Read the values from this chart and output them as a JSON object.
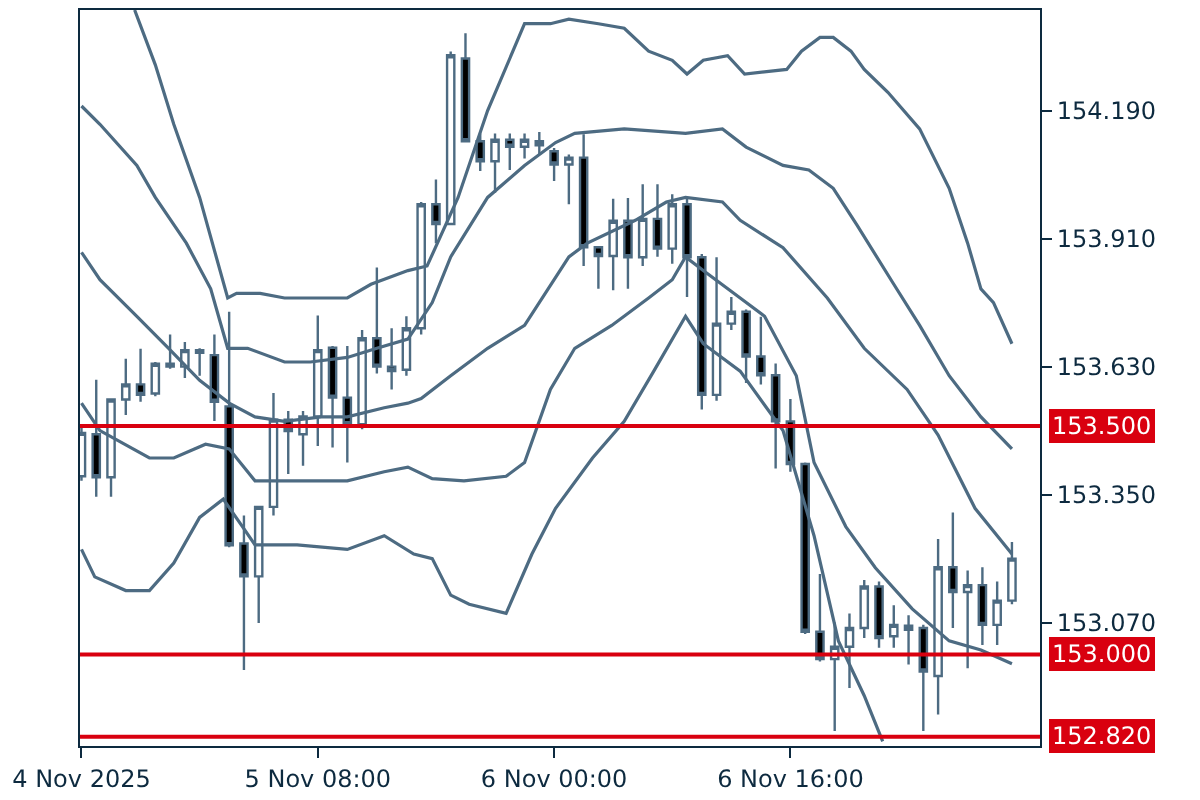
{
  "chart_data": {
    "type": "candlestick",
    "x": [
      "2025-11-04T16:00",
      "2025-11-04T17:00",
      "2025-11-04T18:00",
      "2025-11-04T19:00",
      "2025-11-04T20:00",
      "2025-11-04T21:00",
      "2025-11-04T22:00",
      "2025-11-04T23:00",
      "2025-11-05T00:00",
      "2025-11-05T01:00",
      "2025-11-05T02:00",
      "2025-11-05T03:00",
      "2025-11-05T04:00",
      "2025-11-05T05:00",
      "2025-11-05T06:00",
      "2025-11-05T07:00",
      "2025-11-05T08:00",
      "2025-11-05T09:00",
      "2025-11-05T10:00",
      "2025-11-05T11:00",
      "2025-11-05T12:00",
      "2025-11-05T13:00",
      "2025-11-05T14:00",
      "2025-11-05T15:00",
      "2025-11-05T16:00",
      "2025-11-05T17:00",
      "2025-11-05T18:00",
      "2025-11-05T19:00",
      "2025-11-05T20:00",
      "2025-11-05T21:00",
      "2025-11-05T22:00",
      "2025-11-05T23:00",
      "2025-11-06T00:00",
      "2025-11-06T01:00",
      "2025-11-06T02:00",
      "2025-11-06T03:00",
      "2025-11-06T04:00",
      "2025-11-06T05:00",
      "2025-11-06T06:00",
      "2025-11-06T07:00",
      "2025-11-06T08:00",
      "2025-11-06T09:00",
      "2025-11-06T10:00",
      "2025-11-06T11:00",
      "2025-11-06T12:00",
      "2025-11-06T13:00",
      "2025-11-06T14:00",
      "2025-11-06T15:00",
      "2025-11-06T16:00",
      "2025-11-06T17:00",
      "2025-11-06T18:00",
      "2025-11-06T19:00",
      "2025-11-06T20:00",
      "2025-11-06T21:00",
      "2025-11-06T22:00",
      "2025-11-06T23:00",
      "2025-11-07T00:00",
      "2025-11-07T01:00",
      "2025-11-07T02:00",
      "2025-11-07T03:00",
      "2025-11-07T04:00",
      "2025-11-07T05:00",
      "2025-11-07T06:00",
      "2025-11-07T07:00"
    ],
    "ohlc": [
      [
        153.39,
        153.5,
        153.38,
        153.485
      ],
      [
        153.482,
        153.601,
        153.345,
        153.388
      ],
      [
        153.388,
        153.56,
        153.345,
        153.558
      ],
      [
        153.558,
        153.647,
        153.524,
        153.591
      ],
      [
        153.591,
        153.669,
        153.553,
        153.568
      ],
      [
        153.571,
        153.64,
        153.565,
        153.636
      ],
      [
        153.63,
        153.7,
        153.625,
        153.636
      ],
      [
        153.63,
        153.684,
        153.605,
        153.666
      ],
      [
        153.666,
        153.67,
        153.61,
        153.66
      ],
      [
        153.655,
        153.7,
        153.511,
        153.553
      ],
      [
        153.543,
        153.75,
        153.235,
        153.239
      ],
      [
        153.243,
        153.304,
        152.966,
        153.171
      ],
      [
        153.171,
        153.325,
        153.069,
        153.323
      ],
      [
        153.323,
        153.572,
        153.304,
        153.514
      ],
      [
        153.514,
        153.533,
        153.395,
        153.489
      ],
      [
        153.482,
        153.533,
        153.413,
        153.521
      ],
      [
        153.521,
        153.742,
        153.456,
        153.666
      ],
      [
        153.671,
        153.675,
        153.453,
        153.562
      ],
      [
        153.562,
        153.675,
        153.42,
        153.504
      ],
      [
        153.504,
        153.71,
        153.493,
        153.692
      ],
      [
        153.692,
        153.847,
        153.615,
        153.63
      ],
      [
        153.63,
        153.714,
        153.58,
        153.62
      ],
      [
        153.623,
        153.74,
        153.61,
        153.714
      ],
      [
        153.714,
        153.99,
        153.7,
        153.985
      ],
      [
        153.985,
        154.039,
        153.9,
        153.942
      ],
      [
        153.942,
        154.319,
        153.94,
        154.311
      ],
      [
        154.304,
        154.359,
        154.12,
        154.123
      ],
      [
        154.123,
        154.14,
        154.058,
        154.079
      ],
      [
        154.079,
        154.14,
        154.01,
        154.126
      ],
      [
        154.126,
        154.14,
        154.06,
        154.111
      ],
      [
        154.111,
        154.14,
        154.085,
        154.126
      ],
      [
        154.123,
        154.143,
        154.094,
        154.114
      ],
      [
        154.101,
        154.108,
        154.036,
        154.072
      ],
      [
        154.072,
        154.094,
        153.985,
        154.087
      ],
      [
        154.087,
        154.138,
        153.85,
        153.891
      ],
      [
        153.891,
        153.891,
        153.8,
        153.872
      ],
      [
        153.872,
        153.997,
        153.797,
        153.949
      ],
      [
        153.949,
        153.999,
        153.8,
        153.869
      ],
      [
        153.869,
        154.029,
        153.85,
        153.953
      ],
      [
        153.953,
        154.029,
        153.87,
        153.888
      ],
      [
        153.888,
        154.007,
        153.855,
        153.985
      ],
      [
        153.985,
        153.999,
        153.782,
        153.869
      ],
      [
        153.869,
        153.876,
        153.536,
        153.568
      ],
      [
        153.568,
        153.869,
        153.555,
        153.724
      ],
      [
        153.724,
        153.782,
        153.71,
        153.75
      ],
      [
        153.75,
        153.755,
        153.594,
        153.652
      ],
      [
        153.652,
        153.739,
        153.591,
        153.611
      ],
      [
        153.611,
        153.637,
        153.407,
        153.51
      ],
      [
        153.51,
        153.559,
        153.4,
        153.417
      ],
      [
        153.417,
        153.42,
        153.045,
        153.05
      ],
      [
        153.05,
        153.176,
        152.985,
        152.99
      ],
      [
        152.99,
        153.07,
        152.833,
        153.017
      ],
      [
        153.017,
        153.09,
        152.927,
        153.058
      ],
      [
        153.058,
        153.163,
        153.036,
        153.149
      ],
      [
        153.149,
        153.16,
        153.015,
        153.036
      ],
      [
        153.04,
        153.108,
        153.015,
        153.065
      ],
      [
        153.054,
        153.086,
        152.978,
        153.063
      ],
      [
        153.058,
        153.065,
        152.833,
        152.963
      ],
      [
        152.953,
        153.253,
        152.869,
        153.191
      ],
      [
        153.191,
        153.311,
        153.058,
        153.137
      ],
      [
        153.137,
        153.184,
        152.97,
        153.152
      ],
      [
        153.152,
        153.191,
        153.021,
        153.065
      ],
      [
        153.065,
        153.16,
        153.021,
        153.118
      ],
      [
        153.118,
        153.246,
        153.11,
        153.21
      ]
    ],
    "series": [
      {
        "type": "line",
        "color": "#4d6b82",
        "x": [
          "2025-11-04T19:36",
          "2025-11-04T21:00",
          "2025-11-04T22:15",
          "2025-11-05T00:00",
          "2025-11-05T01:54",
          "2025-11-05T02:30",
          "2025-11-05T04:06",
          "2025-11-05T05:45",
          "2025-11-05T07:30",
          "2025-11-05T10:00",
          "2025-11-05T11:36",
          "2025-11-05T14:06",
          "2025-11-05T15:24",
          "2025-11-05T17:30",
          "2025-11-05T19:30",
          "2025-11-05T22:00",
          "2025-11-05T23:45",
          "2025-11-06T01:00",
          "2025-11-06T03:00",
          "2025-11-06T04:45",
          "2025-11-06T06:24",
          "2025-11-06T08:00",
          "2025-11-06T09:00",
          "2025-11-06T10:06",
          "2025-11-06T11:45",
          "2025-11-06T12:54",
          "2025-11-06T15:45",
          "2025-11-06T16:45",
          "2025-11-06T18:00",
          "2025-11-06T18:54",
          "2025-11-06T20:06",
          "2025-11-06T21:00",
          "2025-11-06T22:36",
          "2025-11-07T00:45",
          "2025-11-07T02:45",
          "2025-11-07T04:00",
          "2025-11-07T04:54",
          "2025-11-07T05:45",
          "2025-11-07T07:00"
        ],
        "values": [
          154.41,
          154.29,
          154.16,
          154,
          153.78,
          153.79,
          153.79,
          153.78,
          153.78,
          153.78,
          153.81,
          153.84,
          153.85,
          154,
          154.19,
          154.38,
          154.38,
          154.39,
          154.38,
          154.37,
          154.32,
          154.3,
          154.27,
          154.3,
          154.31,
          154.27,
          154.28,
          154.32,
          154.35,
          154.35,
          154.32,
          154.28,
          154.23,
          154.15,
          154.02,
          153.9,
          153.8,
          153.77,
          153.68
        ]
      },
      {
        "type": "line",
        "color": "#4d6b82",
        "x": [
          "2025-11-04T16:00",
          "2025-11-04T17:15",
          "2025-11-04T19:45",
          "2025-11-04T21:00",
          "2025-11-04T23:06",
          "2025-11-05T00:45",
          "2025-11-05T01:54",
          "2025-11-05T03:15",
          "2025-11-05T05:45",
          "2025-11-05T07:30",
          "2025-11-05T10:00",
          "2025-11-05T12:00",
          "2025-11-05T14:06",
          "2025-11-05T15:45",
          "2025-11-05T17:00",
          "2025-11-05T19:30",
          "2025-11-05T22:00",
          "2025-11-06T00:06",
          "2025-11-06T01:24",
          "2025-11-06T04:45",
          "2025-11-06T08:54",
          "2025-11-06T11:24",
          "2025-11-06T13:00",
          "2025-11-06T15:30",
          "2025-11-06T17:15",
          "2025-11-06T18:54",
          "2025-11-06T20:30",
          "2025-11-06T23:00",
          "2025-11-07T00:45",
          "2025-11-07T02:45",
          "2025-11-07T04:54",
          "2025-11-07T07:00"
        ],
        "values": [
          154.2,
          154.16,
          154.07,
          154,
          153.9,
          153.8,
          153.67,
          153.67,
          153.64,
          153.64,
          153.65,
          153.67,
          153.69,
          153.77,
          153.87,
          154,
          154.07,
          154.12,
          154.14,
          154.15,
          154.14,
          154.15,
          154.11,
          154.07,
          154.06,
          154.02,
          153.94,
          153.81,
          153.72,
          153.61,
          153.52,
          153.45
        ]
      },
      {
        "type": "line",
        "color": "#4d6b82",
        "x": [
          "2025-11-04T16:00",
          "2025-11-04T17:15",
          "2025-11-04T19:45",
          "2025-11-04T21:54",
          "2025-11-05T00:00",
          "2025-11-05T02:00",
          "2025-11-05T03:45",
          "2025-11-05T05:45",
          "2025-11-05T08:15",
          "2025-11-05T10:00",
          "2025-11-05T12:30",
          "2025-11-05T14:06",
          "2025-11-05T15:00",
          "2025-11-05T17:00",
          "2025-11-05T19:30",
          "2025-11-05T22:00",
          "2025-11-06T01:00",
          "2025-11-06T02:15",
          "2025-11-06T05:30",
          "2025-11-06T07:36",
          "2025-11-06T08:54",
          "2025-11-06T11:24",
          "2025-11-06T12:36",
          "2025-11-06T15:30",
          "2025-11-06T18:30",
          "2025-11-06T21:00",
          "2025-11-06T23:54",
          "2025-11-07T02:00",
          "2025-11-07T04:30",
          "2025-11-07T07:00"
        ],
        "values": [
          153.88,
          153.82,
          153.74,
          153.67,
          153.6,
          153.55,
          153.52,
          153.51,
          153.52,
          153.52,
          153.54,
          153.55,
          153.56,
          153.61,
          153.67,
          153.72,
          153.87,
          153.9,
          153.95,
          153.99,
          154,
          153.99,
          153.95,
          153.89,
          153.78,
          153.67,
          153.58,
          153.48,
          153.32,
          153.22
        ]
      },
      {
        "type": "line",
        "color": "#4d6b82",
        "x": [
          "2025-11-04T16:00",
          "2025-11-04T17:15",
          "2025-11-04T20:36",
          "2025-11-04T22:15",
          "2025-11-05T00:24",
          "2025-11-05T02:00",
          "2025-11-05T03:45",
          "2025-11-05T05:45",
          "2025-11-05T08:15",
          "2025-11-05T10:00",
          "2025-11-05T12:30",
          "2025-11-05T14:06",
          "2025-11-05T15:45",
          "2025-11-05T17:54",
          "2025-11-05T20:45",
          "2025-11-05T22:00",
          "2025-11-05T23:45",
          "2025-11-06T01:24",
          "2025-11-06T03:54",
          "2025-11-06T06:24",
          "2025-11-06T08:00",
          "2025-11-06T08:54",
          "2025-11-06T10:06",
          "2025-11-06T12:36",
          "2025-11-06T14:15",
          "2025-11-06T16:24",
          "2025-11-06T17:36",
          "2025-11-06T19:45",
          "2025-11-06T21:45",
          "2025-11-07T00:15",
          "2025-11-07T02:45",
          "2025-11-07T04:54",
          "2025-11-07T07:00"
        ],
        "values": [
          153.55,
          153.49,
          153.43,
          153.43,
          153.46,
          153.45,
          153.38,
          153.38,
          153.38,
          153.38,
          153.4,
          153.41,
          153.385,
          153.38,
          153.39,
          153.42,
          153.58,
          153.67,
          153.72,
          153.78,
          153.82,
          153.87,
          153.84,
          153.78,
          153.74,
          153.61,
          153.42,
          153.28,
          153.19,
          153.1,
          153.03,
          153.01,
          152.98
        ]
      },
      {
        "type": "line",
        "color": "#4d6b82",
        "x": [
          "2025-11-04T16:00",
          "2025-11-04T16:54",
          "2025-11-04T19:00",
          "2025-11-04T20:36",
          "2025-11-04T22:15",
          "2025-11-05T00:00",
          "2025-11-05T01:36",
          "2025-11-05T02:54",
          "2025-11-05T03:45",
          "2025-11-05T06:36",
          "2025-11-05T10:00",
          "2025-11-05T12:30",
          "2025-11-05T14:30",
          "2025-11-05T15:45",
          "2025-11-05T17:00",
          "2025-11-05T18:15",
          "2025-11-05T20:45",
          "2025-11-05T22:30",
          "2025-11-06T00:06",
          "2025-11-06T02:36",
          "2025-11-06T04:45",
          "2025-11-06T06:45",
          "2025-11-06T08:54",
          "2025-11-06T10:06",
          "2025-11-06T12:36",
          "2025-11-06T15:30",
          "2025-11-06T17:36",
          "2025-11-06T19:15",
          "2025-11-06T21:00",
          "2025-11-06T22:15"
        ],
        "values": [
          153.23,
          153.17,
          153.14,
          153.14,
          153.2,
          153.3,
          153.34,
          153.28,
          153.24,
          153.24,
          153.23,
          153.26,
          153.22,
          153.21,
          153.13,
          153.11,
          153.09,
          153.22,
          153.32,
          153.43,
          153.51,
          153.62,
          153.74,
          153.68,
          153.62,
          153.49,
          153.26,
          153.03,
          152.91,
          152.81
        ]
      }
    ],
    "xlim": [
      "2025-11-04T15:54",
      "2025-11-07T08:54"
    ],
    "xticks": [
      {
        "value": "2025-11-04T16:00",
        "label": "4 Nov 2025"
      },
      {
        "value": "2025-11-05T08:00",
        "label": "5 Nov 08:00"
      },
      {
        "value": "2025-11-06T00:00",
        "label": "6 Nov 00:00"
      },
      {
        "value": "2025-11-06T16:00",
        "label": "6 Nov 16:00"
      }
    ],
    "ylim": [
      152.8,
      154.41
    ],
    "yticks": [
      {
        "value": 154.19,
        "label": "154.190"
      },
      {
        "value": 153.91,
        "label": "153.910"
      },
      {
        "value": 153.63,
        "label": "153.630"
      },
      {
        "value": 153.35,
        "label": "153.350"
      },
      {
        "value": 153.07,
        "label": "153.070"
      }
    ],
    "ref_lines": [
      {
        "axis": "y",
        "value": 153.5,
        "label": "153.500",
        "color": "#d9000f"
      },
      {
        "axis": "y",
        "value": 153.0,
        "label": "153.000",
        "color": "#d9000f"
      },
      {
        "axis": "y",
        "value": 152.82,
        "label": "152.820",
        "color": "#d9000f"
      }
    ],
    "grid": false
  }
}
